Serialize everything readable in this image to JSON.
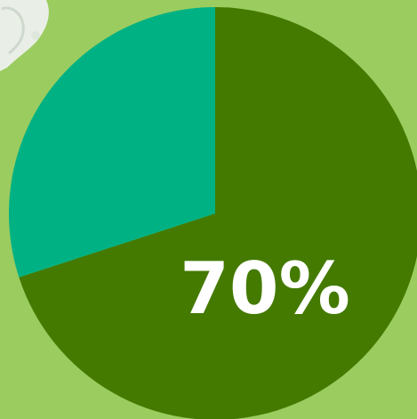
{
  "chart_data": {
    "type": "pie",
    "slices": [
      {
        "label": "",
        "value": 70,
        "color": "#447a00"
      },
      {
        "label": "",
        "value": 30,
        "color": "#00b283"
      }
    ],
    "start_angle_deg": 0,
    "direction": "clockwise",
    "data_labels": [
      {
        "text": "70%",
        "slice_index": 0,
        "color": "#ffffff"
      }
    ]
  },
  "background_color": "#9bcc5f",
  "decoration": {
    "name": "white-figure-corner",
    "color": "#e9efe6"
  }
}
